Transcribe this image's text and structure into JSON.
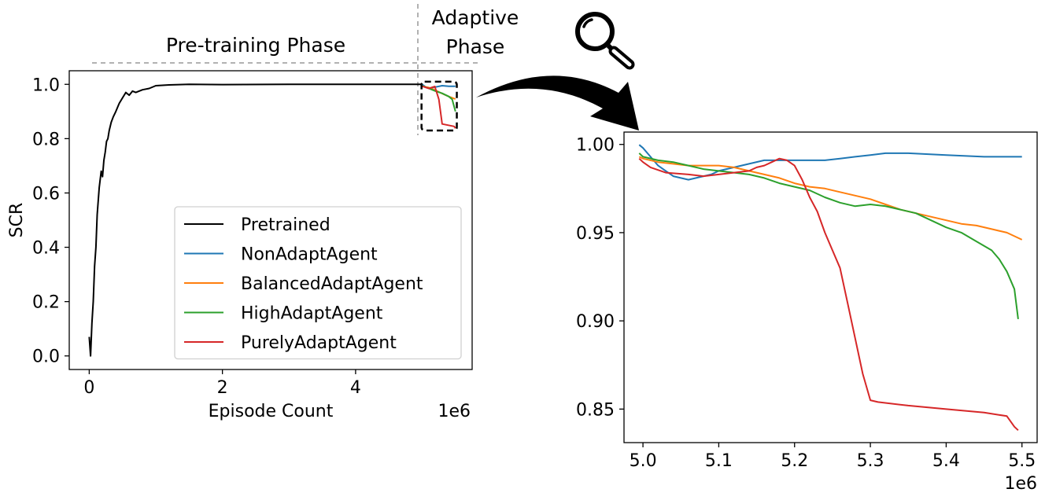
{
  "phases": {
    "pretrain_label": "Pre-training Phase",
    "adaptive_label_line1": "Adaptive",
    "adaptive_label_line2": "Phase"
  },
  "icons": {
    "zoom": "magnifier-icon",
    "arrow": "curved-arrow-icon"
  },
  "colors": {
    "Pretrained": "#000000",
    "NonAdaptAgent": "#1f77b4",
    "BalancedAdaptAgent": "#ff7f0e",
    "HighAdaptAgent": "#2ca02c",
    "PurelyAdaptAgent": "#d62728"
  },
  "chart_data": [
    {
      "type": "line",
      "xlabel": "Episode Count",
      "ylabel": "SCR",
      "x_offset_label": "1e6",
      "xlim": [
        -0.3,
        5.75
      ],
      "ylim": [
        -0.05,
        1.05
      ],
      "xticks": [
        0,
        2,
        4
      ],
      "xtick_labels": [
        "0",
        "2",
        "4"
      ],
      "yticks": [
        0.0,
        0.2,
        0.4,
        0.6,
        0.8,
        1.0
      ],
      "ytick_labels": [
        "0.0",
        "0.2",
        "0.4",
        "0.6",
        "0.8",
        "1.0"
      ],
      "phase_boundary_x": 5.0,
      "zoom_box": {
        "x": [
          4.99,
          5.52
        ],
        "y": [
          0.83,
          1.01
        ]
      },
      "legend": [
        "Pretrained",
        "NonAdaptAgent",
        "BalancedAdaptAgent",
        "HighAdaptAgent",
        "PurelyAdaptAgent"
      ],
      "legend_position": "lower-right",
      "series": [
        {
          "name": "Pretrained",
          "x": [
            0.0,
            0.02,
            0.04,
            0.06,
            0.08,
            0.1,
            0.12,
            0.15,
            0.18,
            0.2,
            0.22,
            0.24,
            0.26,
            0.28,
            0.3,
            0.33,
            0.36,
            0.4,
            0.45,
            0.5,
            0.55,
            0.6,
            0.65,
            0.7,
            0.8,
            0.9,
            1.0,
            1.2,
            1.5,
            2.0,
            3.0,
            4.0,
            5.0
          ],
          "y": [
            0.07,
            0.0,
            0.12,
            0.2,
            0.33,
            0.4,
            0.52,
            0.62,
            0.68,
            0.66,
            0.72,
            0.75,
            0.79,
            0.8,
            0.83,
            0.86,
            0.88,
            0.9,
            0.93,
            0.95,
            0.97,
            0.96,
            0.975,
            0.97,
            0.98,
            0.985,
            0.995,
            0.998,
            1.0,
            0.999,
            1.0,
            1.0,
            1.0
          ]
        },
        {
          "name": "NonAdaptAgent",
          "x": [
            5.0,
            5.05,
            5.1,
            5.2,
            5.3,
            5.4,
            5.5
          ],
          "y": [
            1.0,
            0.99,
            0.985,
            0.99,
            0.995,
            0.993,
            0.993
          ]
        },
        {
          "name": "BalancedAdaptAgent",
          "x": [
            5.0,
            5.1,
            5.2,
            5.3,
            5.4,
            5.5
          ],
          "y": [
            0.993,
            0.988,
            0.978,
            0.966,
            0.955,
            0.946
          ]
        },
        {
          "name": "HighAdaptAgent",
          "x": [
            5.0,
            5.1,
            5.2,
            5.3,
            5.4,
            5.45,
            5.5
          ],
          "y": [
            0.995,
            0.985,
            0.975,
            0.967,
            0.955,
            0.945,
            0.9
          ]
        },
        {
          "name": "PurelyAdaptAgent",
          "x": [
            5.0,
            5.1,
            5.19,
            5.25,
            5.3,
            5.48,
            5.5
          ],
          "y": [
            0.993,
            0.985,
            0.992,
            0.945,
            0.854,
            0.845,
            0.838
          ]
        }
      ]
    },
    {
      "type": "line",
      "xlabel": "",
      "ylabel": "",
      "x_offset_label": "1e6",
      "xlim": [
        4.975,
        5.52
      ],
      "ylim": [
        0.831,
        1.007
      ],
      "xticks": [
        5.0,
        5.1,
        5.2,
        5.3,
        5.4,
        5.5
      ],
      "xtick_labels": [
        "5.0",
        "5.1",
        "5.2",
        "5.3",
        "5.4",
        "5.5"
      ],
      "yticks": [
        0.85,
        0.9,
        0.95,
        1.0
      ],
      "ytick_labels": [
        "0.85",
        "0.90",
        "0.95",
        "1.00"
      ],
      "series": [
        {
          "name": "NonAdaptAgent",
          "x": [
            4.995,
            5.0,
            5.01,
            5.02,
            5.03,
            5.04,
            5.05,
            5.06,
            5.07,
            5.08,
            5.09,
            5.1,
            5.12,
            5.14,
            5.16,
            5.18,
            5.2,
            5.22,
            5.24,
            5.26,
            5.28,
            5.3,
            5.32,
            5.35,
            5.4,
            5.45,
            5.5
          ],
          "y": [
            0.9998,
            0.998,
            0.993,
            0.988,
            0.985,
            0.982,
            0.981,
            0.98,
            0.981,
            0.982,
            0.983,
            0.985,
            0.987,
            0.989,
            0.991,
            0.991,
            0.991,
            0.991,
            0.991,
            0.992,
            0.993,
            0.994,
            0.995,
            0.995,
            0.994,
            0.993,
            0.993
          ]
        },
        {
          "name": "BalancedAdaptAgent",
          "x": [
            4.995,
            5.0,
            5.02,
            5.04,
            5.06,
            5.08,
            5.1,
            5.12,
            5.14,
            5.16,
            5.18,
            5.2,
            5.22,
            5.24,
            5.26,
            5.28,
            5.3,
            5.32,
            5.34,
            5.36,
            5.38,
            5.4,
            5.42,
            5.44,
            5.46,
            5.48,
            5.5
          ],
          "y": [
            0.993,
            0.992,
            0.99,
            0.989,
            0.988,
            0.988,
            0.988,
            0.987,
            0.985,
            0.983,
            0.981,
            0.978,
            0.976,
            0.975,
            0.973,
            0.971,
            0.969,
            0.966,
            0.963,
            0.961,
            0.959,
            0.957,
            0.955,
            0.954,
            0.952,
            0.95,
            0.946
          ]
        },
        {
          "name": "HighAdaptAgent",
          "x": [
            4.995,
            5.0,
            5.02,
            5.04,
            5.06,
            5.08,
            5.1,
            5.12,
            5.14,
            5.16,
            5.18,
            5.2,
            5.22,
            5.24,
            5.26,
            5.28,
            5.3,
            5.32,
            5.34,
            5.36,
            5.38,
            5.4,
            5.42,
            5.44,
            5.46,
            5.47,
            5.48,
            5.49,
            5.495
          ],
          "y": [
            0.995,
            0.993,
            0.991,
            0.99,
            0.988,
            0.986,
            0.985,
            0.984,
            0.983,
            0.981,
            0.978,
            0.976,
            0.974,
            0.97,
            0.967,
            0.965,
            0.966,
            0.965,
            0.963,
            0.961,
            0.957,
            0.953,
            0.95,
            0.945,
            0.94,
            0.935,
            0.928,
            0.918,
            0.901
          ]
        },
        {
          "name": "PurelyAdaptAgent",
          "x": [
            4.995,
            5.0,
            5.01,
            5.03,
            5.06,
            5.08,
            5.1,
            5.12,
            5.14,
            5.15,
            5.16,
            5.17,
            5.18,
            5.19,
            5.2,
            5.21,
            5.22,
            5.23,
            5.24,
            5.25,
            5.26,
            5.27,
            5.28,
            5.29,
            5.3,
            5.31,
            5.35,
            5.4,
            5.45,
            5.48,
            5.49,
            5.495
          ],
          "y": [
            0.992,
            0.99,
            0.987,
            0.984,
            0.983,
            0.982,
            0.983,
            0.984,
            0.985,
            0.987,
            0.988,
            0.99,
            0.992,
            0.991,
            0.988,
            0.98,
            0.97,
            0.962,
            0.95,
            0.94,
            0.93,
            0.91,
            0.89,
            0.87,
            0.855,
            0.854,
            0.852,
            0.85,
            0.848,
            0.846,
            0.84,
            0.838
          ]
        }
      ]
    }
  ]
}
